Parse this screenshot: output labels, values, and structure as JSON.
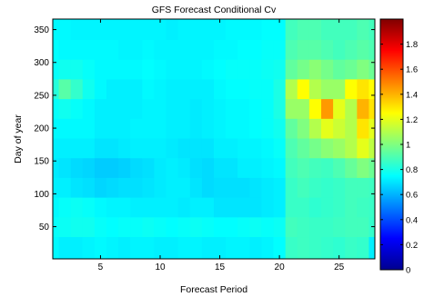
{
  "chart_data": {
    "type": "heatmap",
    "title": "GFS Forecast Conditional Cv",
    "xlabel": "Forecast Period",
    "ylabel": "Day of year",
    "xlim": [
      1,
      28
    ],
    "ylim": [
      1,
      366
    ],
    "x_ticks": [
      5,
      10,
      15,
      20,
      25
    ],
    "y_ticks": [
      50,
      100,
      150,
      200,
      250,
      300,
      350
    ],
    "colorbar": {
      "min": 0,
      "max": 2,
      "ticks": [
        0,
        0.2,
        0.4,
        0.6,
        0.8,
        1,
        1.2,
        1.4,
        1.6,
        1.8
      ],
      "tick_labels": [
        "0",
        "0.2",
        "0.4",
        "0.6",
        "0.8",
        "1",
        "1.2",
        "1.4",
        "1.6",
        "1.8"
      ],
      "colormap": "jet"
    },
    "grid": false,
    "x": [
      1,
      2,
      3,
      4,
      5,
      6,
      7,
      8,
      9,
      10,
      11,
      12,
      13,
      14,
      15,
      16,
      17,
      18,
      19,
      20,
      21,
      22,
      23,
      24,
      25,
      26,
      27,
      28
    ],
    "y": [
      20,
      50,
      80,
      110,
      140,
      170,
      200,
      230,
      260,
      290,
      320,
      350
    ],
    "z": [
      [
        0.74,
        0.72,
        0.72,
        0.73,
        0.74,
        0.73,
        0.72,
        0.73,
        0.73,
        0.72,
        0.72,
        0.73,
        0.73,
        0.72,
        0.72,
        0.73,
        0.73,
        0.72,
        0.73,
        0.75,
        0.86,
        0.87,
        0.86,
        0.85,
        0.84,
        0.86,
        0.85,
        0.72
      ],
      [
        0.76,
        0.77,
        0.78,
        0.78,
        0.76,
        0.75,
        0.76,
        0.76,
        0.77,
        0.76,
        0.75,
        0.76,
        0.77,
        0.76,
        0.75,
        0.75,
        0.76,
        0.77,
        0.76,
        0.77,
        0.88,
        0.87,
        0.86,
        0.86,
        0.87,
        0.88,
        0.88,
        0.85
      ],
      [
        0.74,
        0.76,
        0.77,
        0.76,
        0.74,
        0.73,
        0.73,
        0.72,
        0.72,
        0.72,
        0.72,
        0.71,
        0.72,
        0.72,
        0.7,
        0.7,
        0.7,
        0.7,
        0.71,
        0.72,
        0.86,
        0.86,
        0.84,
        0.85,
        0.86,
        0.88,
        0.87,
        0.86
      ],
      [
        0.72,
        0.72,
        0.7,
        0.69,
        0.67,
        0.68,
        0.69,
        0.69,
        0.7,
        0.71,
        0.72,
        0.72,
        0.7,
        0.68,
        0.69,
        0.69,
        0.69,
        0.7,
        0.71,
        0.72,
        0.86,
        0.88,
        0.86,
        0.85,
        0.86,
        0.88,
        0.88,
        0.87
      ],
      [
        0.71,
        0.7,
        0.68,
        0.67,
        0.65,
        0.65,
        0.66,
        0.68,
        0.69,
        0.71,
        0.72,
        0.71,
        0.69,
        0.68,
        0.7,
        0.7,
        0.72,
        0.72,
        0.73,
        0.74,
        0.88,
        0.9,
        0.88,
        0.87,
        0.9,
        0.95,
        1.0,
        0.96
      ],
      [
        0.72,
        0.72,
        0.72,
        0.72,
        0.7,
        0.7,
        0.71,
        0.72,
        0.72,
        0.72,
        0.71,
        0.7,
        0.7,
        0.7,
        0.72,
        0.72,
        0.73,
        0.73,
        0.74,
        0.76,
        0.9,
        0.94,
        0.98,
        1.02,
        1.05,
        1.1,
        1.2,
        1.12
      ],
      [
        0.74,
        0.74,
        0.74,
        0.74,
        0.72,
        0.72,
        0.72,
        0.73,
        0.73,
        0.73,
        0.72,
        0.72,
        0.71,
        0.72,
        0.73,
        0.74,
        0.74,
        0.75,
        0.76,
        0.78,
        0.94,
        1.0,
        1.1,
        1.2,
        1.15,
        1.1,
        1.3,
        1.2
      ],
      [
        0.76,
        0.78,
        0.76,
        0.74,
        0.72,
        0.72,
        0.72,
        0.72,
        0.73,
        0.73,
        0.72,
        0.72,
        0.71,
        0.72,
        0.73,
        0.74,
        0.74,
        0.75,
        0.76,
        0.8,
        1.05,
        1.05,
        1.25,
        1.45,
        1.2,
        1.1,
        1.4,
        1.3
      ],
      [
        0.82,
        0.92,
        0.85,
        0.78,
        0.74,
        0.72,
        0.72,
        0.72,
        0.74,
        0.73,
        0.72,
        0.72,
        0.72,
        0.72,
        0.74,
        0.75,
        0.75,
        0.76,
        0.76,
        0.8,
        1.1,
        1.25,
        1.1,
        1.05,
        1.05,
        1.25,
        1.3,
        1.25
      ],
      [
        0.76,
        0.78,
        0.78,
        0.76,
        0.74,
        0.74,
        0.74,
        0.74,
        0.75,
        0.74,
        0.73,
        0.73,
        0.73,
        0.74,
        0.75,
        0.76,
        0.76,
        0.76,
        0.77,
        0.78,
        0.94,
        0.98,
        1.02,
        0.98,
        0.94,
        0.96,
        1.0,
        0.96
      ],
      [
        0.75,
        0.74,
        0.74,
        0.74,
        0.74,
        0.74,
        0.73,
        0.73,
        0.74,
        0.73,
        0.73,
        0.73,
        0.73,
        0.73,
        0.74,
        0.74,
        0.75,
        0.75,
        0.76,
        0.76,
        0.9,
        0.92,
        0.92,
        0.9,
        0.88,
        0.9,
        0.92,
        0.9
      ],
      [
        0.74,
        0.74,
        0.73,
        0.73,
        0.73,
        0.73,
        0.73,
        0.73,
        0.73,
        0.73,
        0.72,
        0.73,
        0.73,
        0.73,
        0.73,
        0.74,
        0.74,
        0.74,
        0.75,
        0.75,
        0.88,
        0.9,
        0.9,
        0.88,
        0.88,
        0.88,
        0.9,
        0.88
      ]
    ]
  }
}
